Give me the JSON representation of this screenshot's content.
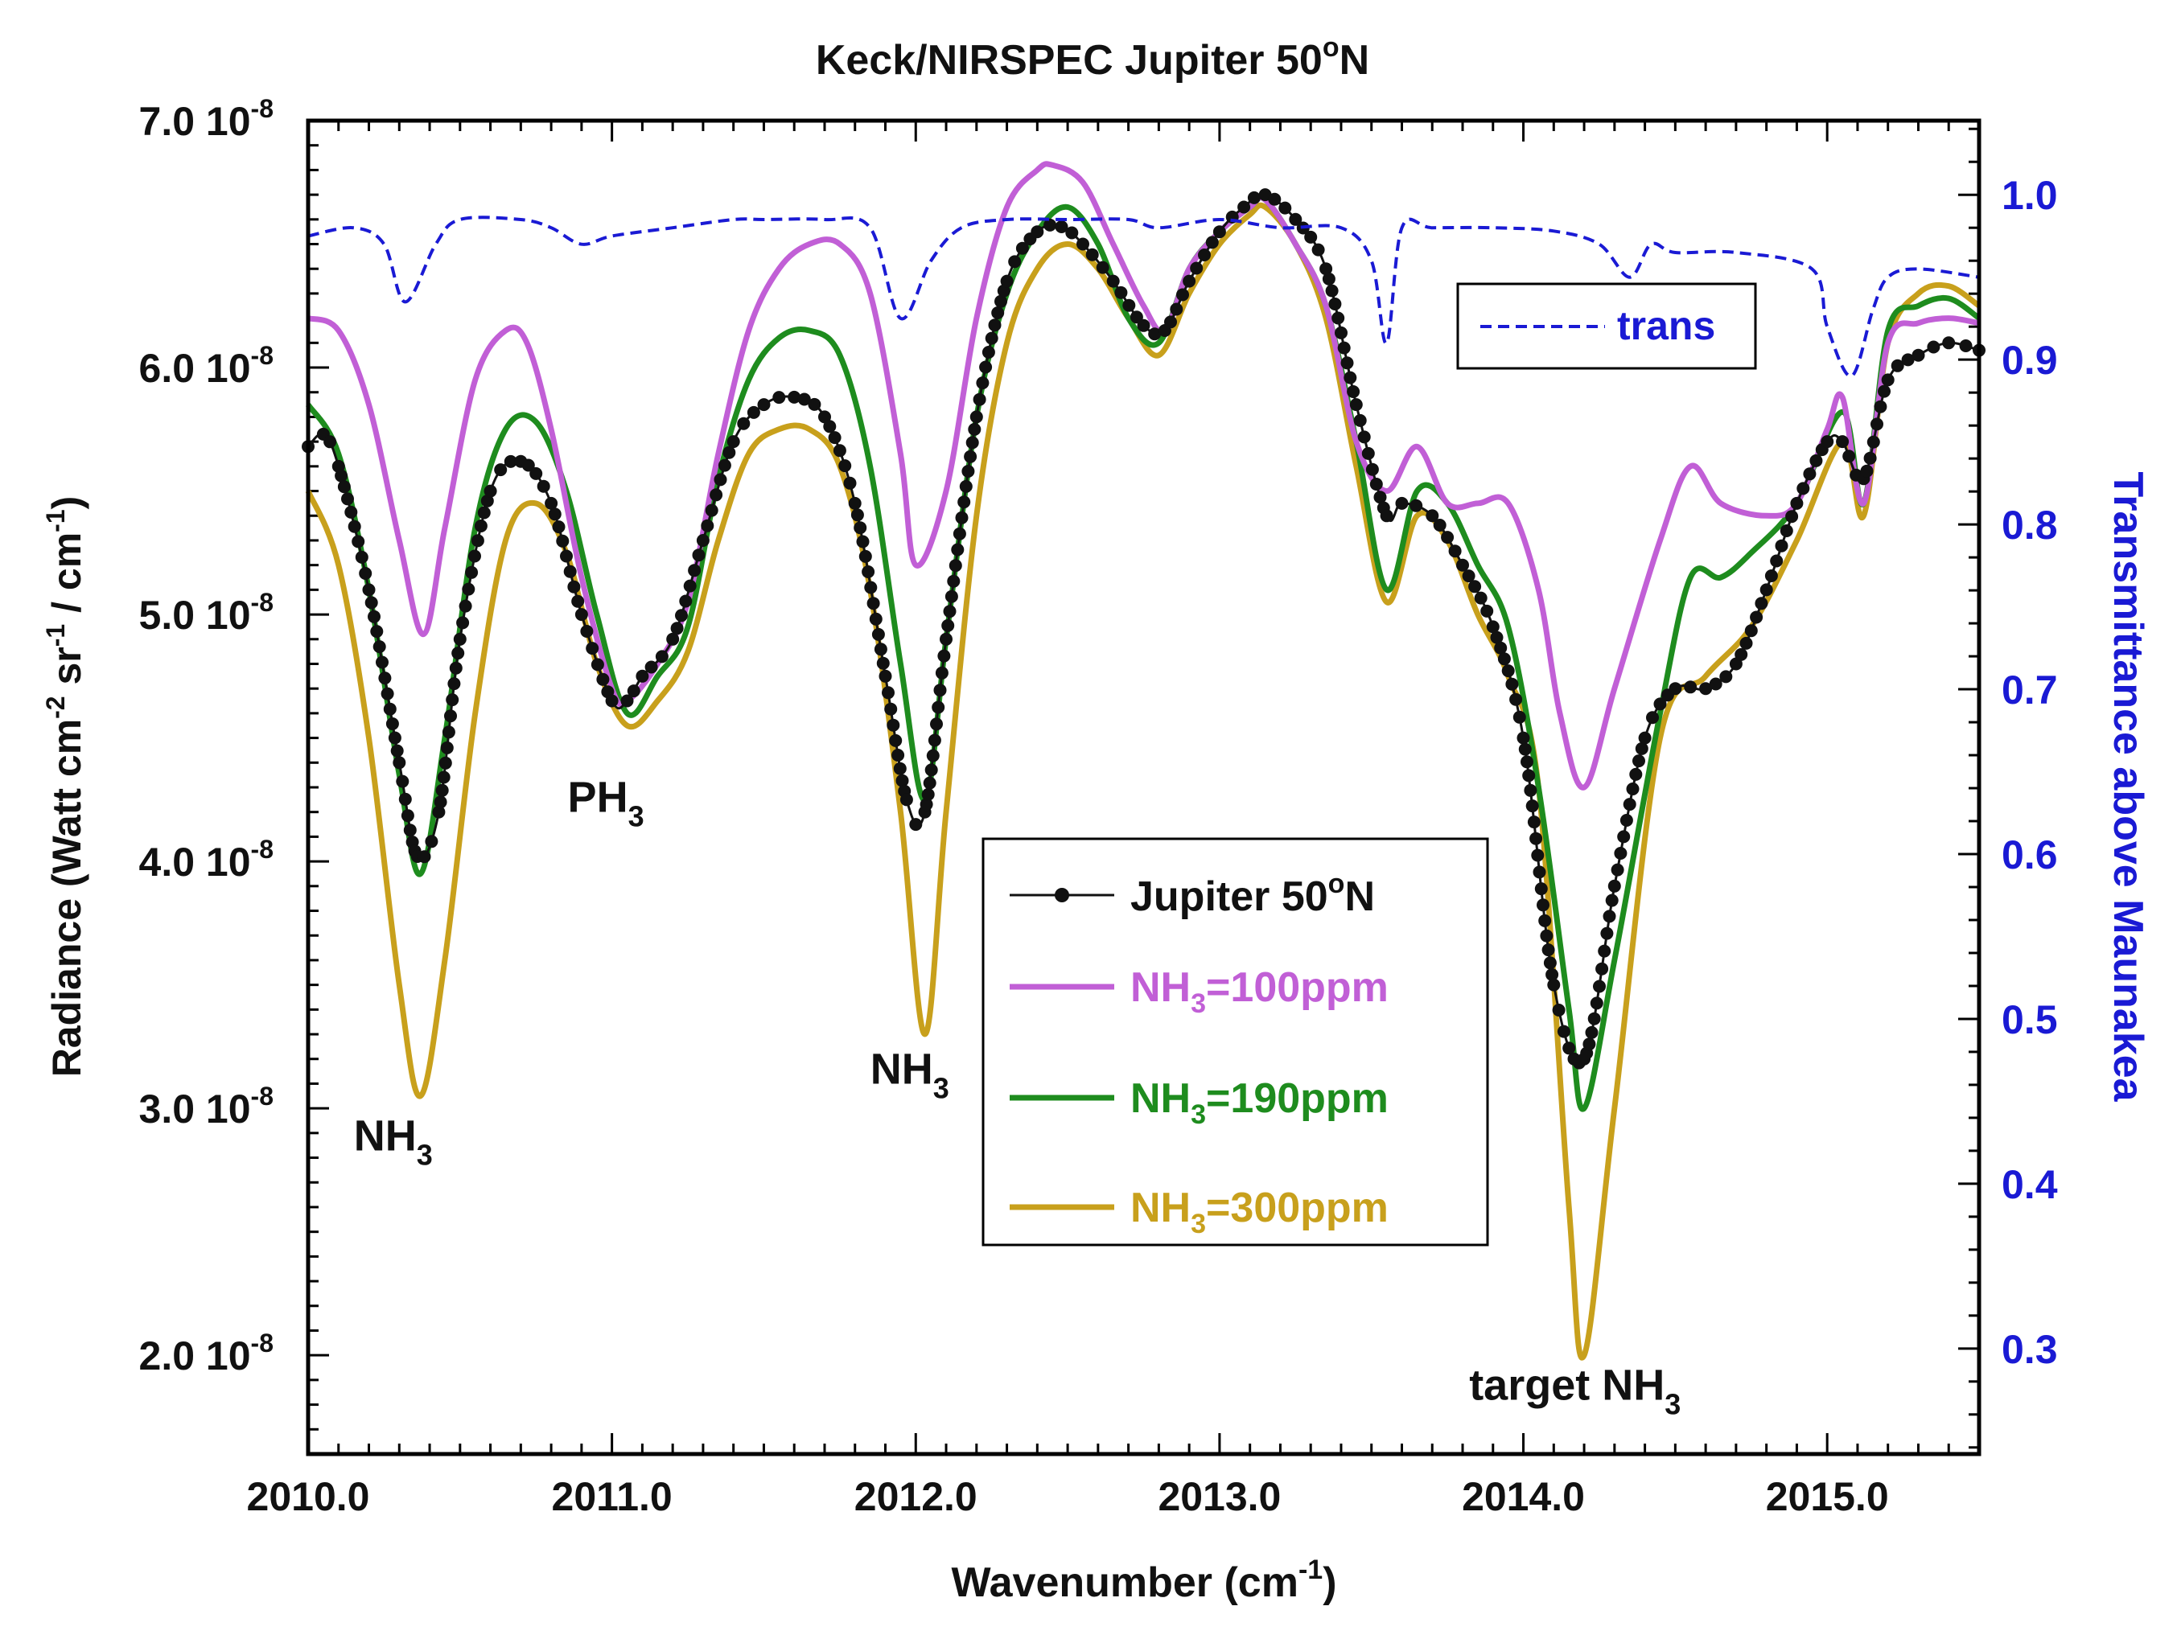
{
  "chart_data": {
    "type": "line",
    "title": {
      "pre": "Keck/NIRSPEC Jupiter 50",
      "sup": "o",
      "post": "N"
    },
    "xlabel": {
      "pre": "Wavenumber (cm",
      "sup": "-1",
      "post": ")"
    },
    "ylabel_left": {
      "a": "Radiance (Watt cm",
      "sa": "-2",
      "b": " sr",
      "sb": "-1",
      "c": " / cm",
      "sc": "-1",
      "d": ")"
    },
    "ylabel_right": "Transmittance above Maunakea",
    "xlim": [
      2010.0,
      2015.5
    ],
    "ylim_left": [
      1.6e-08,
      7e-08
    ],
    "ylim_right": [
      0.236,
      1.045
    ],
    "x_ticks": [
      {
        "value": 2010.0,
        "label": "2010.0"
      },
      {
        "value": 2011.0,
        "label": "2011.0"
      },
      {
        "value": 2012.0,
        "label": "2012.0"
      },
      {
        "value": 2013.0,
        "label": "2013.0"
      },
      {
        "value": 2014.0,
        "label": "2014.0"
      },
      {
        "value": 2015.0,
        "label": "2015.0"
      }
    ],
    "y_left_ticks": [
      {
        "value": 2e-08,
        "mant": "2.0 10",
        "exp": "-8"
      },
      {
        "value": 3e-08,
        "mant": "3.0 10",
        "exp": "-8"
      },
      {
        "value": 4e-08,
        "mant": "4.0 10",
        "exp": "-8"
      },
      {
        "value": 5e-08,
        "mant": "5.0 10",
        "exp": "-8"
      },
      {
        "value": 6e-08,
        "mant": "6.0 10",
        "exp": "-8"
      },
      {
        "value": 7e-08,
        "mant": "7.0 10",
        "exp": "-8"
      }
    ],
    "y_right_ticks": [
      {
        "value": 0.3,
        "label": "0.3"
      },
      {
        "value": 0.4,
        "label": "0.4"
      },
      {
        "value": 0.5,
        "label": "0.5"
      },
      {
        "value": 0.6,
        "label": "0.6"
      },
      {
        "value": 0.7,
        "label": "0.7"
      },
      {
        "value": 0.8,
        "label": "0.8"
      },
      {
        "value": 0.9,
        "label": "0.9"
      },
      {
        "value": 1.0,
        "label": "1.0"
      }
    ],
    "series": [
      {
        "name": "NH3=300ppm",
        "legend": {
          "a": "NH",
          "sub": "3",
          "b": "=300ppm"
        },
        "color": "#c8a01c",
        "axis": "left",
        "style": "solid",
        "x": [
          2010.0,
          2010.1,
          2010.2,
          2010.3,
          2010.37,
          2010.45,
          2010.55,
          2010.65,
          2010.75,
          2010.85,
          2010.95,
          2011.05,
          2011.15,
          2011.25,
          2011.35,
          2011.45,
          2011.55,
          2011.65,
          2011.75,
          2011.85,
          2011.95,
          2012.03,
          2012.1,
          2012.2,
          2012.3,
          2012.4,
          2012.5,
          2012.6,
          2012.7,
          2012.8,
          2012.9,
          2013.0,
          2013.1,
          2013.15,
          2013.25,
          2013.35,
          2013.45,
          2013.55,
          2013.65,
          2013.75,
          2013.85,
          2013.95,
          2014.05,
          2014.15,
          2014.2,
          2014.3,
          2014.45,
          2014.6,
          2014.75,
          2014.9,
          2015.05,
          2015.12,
          2015.2,
          2015.3,
          2015.4,
          2015.5
        ],
        "values": [
          5.5e-08,
          5.2e-08,
          4.5e-08,
          3.5e-08,
          3.05e-08,
          3.6e-08,
          4.6e-08,
          5.3e-08,
          5.45e-08,
          5.25e-08,
          4.8e-08,
          4.55e-08,
          4.65e-08,
          4.85e-08,
          5.3e-08,
          5.65e-08,
          5.75e-08,
          5.75e-08,
          5.6e-08,
          5.1e-08,
          4.2e-08,
          3.3e-08,
          4.2e-08,
          5.4e-08,
          6.1e-08,
          6.4e-08,
          6.5e-08,
          6.4e-08,
          6.2e-08,
          6.05e-08,
          6.3e-08,
          6.5e-08,
          6.62e-08,
          6.65e-08,
          6.5e-08,
          6.2e-08,
          5.6e-08,
          5.05e-08,
          5.4e-08,
          5.3e-08,
          5e-08,
          4.75e-08,
          4.3e-08,
          2.6e-08,
          2e-08,
          3e-08,
          4.5e-08,
          4.75e-08,
          4.95e-08,
          5.3e-08,
          5.7e-08,
          5.4e-08,
          6.1e-08,
          6.3e-08,
          6.33e-08,
          6.25e-08
        ]
      },
      {
        "name": "NH3=190ppm",
        "legend": {
          "a": "NH",
          "sub": "3",
          "b": "=190ppm"
        },
        "color": "#1e8c1e",
        "axis": "left",
        "style": "solid",
        "x": [
          2010.0,
          2010.1,
          2010.2,
          2010.3,
          2010.37,
          2010.45,
          2010.55,
          2010.65,
          2010.75,
          2010.85,
          2010.95,
          2011.05,
          2011.15,
          2011.25,
          2011.35,
          2011.45,
          2011.55,
          2011.65,
          2011.75,
          2011.85,
          2011.95,
          2012.03,
          2012.1,
          2012.2,
          2012.3,
          2012.4,
          2012.5,
          2012.6,
          2012.7,
          2012.8,
          2012.9,
          2013.0,
          2013.1,
          2013.15,
          2013.25,
          2013.35,
          2013.45,
          2013.55,
          2013.65,
          2013.75,
          2013.85,
          2013.95,
          2014.05,
          2014.15,
          2014.2,
          2014.3,
          2014.45,
          2014.55,
          2014.65,
          2014.75,
          2014.9,
          2015.05,
          2015.12,
          2015.2,
          2015.3,
          2015.4,
          2015.5
        ],
        "values": [
          5.85e-08,
          5.65e-08,
          5.1e-08,
          4.35e-08,
          3.95e-08,
          4.5e-08,
          5.35e-08,
          5.75e-08,
          5.78e-08,
          5.5e-08,
          5e-08,
          4.6e-08,
          4.75e-08,
          4.95e-08,
          5.55e-08,
          5.95e-08,
          6.12e-08,
          6.15e-08,
          6.05e-08,
          5.6e-08,
          4.8e-08,
          4.25e-08,
          4.9e-08,
          5.8e-08,
          6.3e-08,
          6.55e-08,
          6.65e-08,
          6.5e-08,
          6.2e-08,
          6.1e-08,
          6.4e-08,
          6.55e-08,
          6.65e-08,
          6.68e-08,
          6.5e-08,
          6.25e-08,
          5.7e-08,
          5.1e-08,
          5.5e-08,
          5.45e-08,
          5.2e-08,
          4.95e-08,
          4.3e-08,
          3.4e-08,
          3e-08,
          3.6e-08,
          4.6e-08,
          5.15e-08,
          5.15e-08,
          5.25e-08,
          5.45e-08,
          5.82e-08,
          5.45e-08,
          6.15e-08,
          6.25e-08,
          6.28e-08,
          6.2e-08
        ]
      },
      {
        "name": "NH3=100ppm",
        "legend": {
          "a": "NH",
          "sub": "3",
          "b": "=100ppm"
        },
        "color": "#c15fd6",
        "axis": "left",
        "style": "solid",
        "x": [
          2010.0,
          2010.1,
          2010.2,
          2010.3,
          2010.38,
          2010.45,
          2010.55,
          2010.65,
          2010.72,
          2010.8,
          2010.9,
          2011.0,
          2011.05,
          2011.15,
          2011.25,
          2011.35,
          2011.45,
          2011.55,
          2011.65,
          2011.75,
          2011.85,
          2011.95,
          2012.0,
          2012.1,
          2012.2,
          2012.3,
          2012.4,
          2012.45,
          2012.55,
          2012.65,
          2012.75,
          2012.82,
          2012.9,
          2013.0,
          2013.1,
          2013.15,
          2013.25,
          2013.35,
          2013.45,
          2013.55,
          2013.65,
          2013.75,
          2013.85,
          2013.95,
          2014.05,
          2014.12,
          2014.2,
          2014.3,
          2014.45,
          2014.55,
          2014.65,
          2014.8,
          2014.9,
          2015.0,
          2015.05,
          2015.12,
          2015.2,
          2015.3,
          2015.4,
          2015.5
        ],
        "values": [
          6.2e-08,
          6.15e-08,
          5.85e-08,
          5.3e-08,
          4.92e-08,
          5.35e-08,
          5.95e-08,
          6.15e-08,
          6.1e-08,
          5.75e-08,
          5.15e-08,
          4.7e-08,
          4.65e-08,
          4.8e-08,
          5.05e-08,
          5.65e-08,
          6.15e-08,
          6.4e-08,
          6.5e-08,
          6.5e-08,
          6.3e-08,
          5.65e-08,
          5.2e-08,
          5.5e-08,
          6.2e-08,
          6.65e-08,
          6.8e-08,
          6.82e-08,
          6.75e-08,
          6.5e-08,
          6.25e-08,
          6.15e-08,
          6.4e-08,
          6.55e-08,
          6.65e-08,
          6.68e-08,
          6.5e-08,
          6.25e-08,
          5.7e-08,
          5.5e-08,
          5.68e-08,
          5.45e-08,
          5.45e-08,
          5.45e-08,
          5.1e-08,
          4.6e-08,
          4.3e-08,
          4.7e-08,
          5.3e-08,
          5.6e-08,
          5.45e-08,
          5.4e-08,
          5.45e-08,
          5.75e-08,
          5.88e-08,
          5.45e-08,
          6.1e-08,
          6.18e-08,
          6.2e-08,
          6.18e-08
        ]
      },
      {
        "name": "Jupiter 50oN",
        "legend": {
          "a": "Jupiter 50",
          "sup": "o",
          "b": "N"
        },
        "color": "#111111",
        "axis": "left",
        "style": "dots",
        "x": [
          2010.0,
          2010.05,
          2010.1,
          2010.2,
          2010.3,
          2010.36,
          2010.43,
          2010.5,
          2010.6,
          2010.7,
          2010.8,
          2010.9,
          2011.0,
          2011.05,
          2011.1,
          2011.2,
          2011.3,
          2011.4,
          2011.5,
          2011.6,
          2011.7,
          2011.8,
          2011.9,
          2011.97,
          2012.03,
          2012.1,
          2012.2,
          2012.3,
          2012.4,
          2012.48,
          2012.55,
          2012.65,
          2012.75,
          2012.82,
          2012.9,
          2013.0,
          2013.08,
          2013.15,
          2013.25,
          2013.35,
          2013.45,
          2013.55,
          2013.6,
          2013.7,
          2013.8,
          2013.9,
          2014.0,
          2014.1,
          2014.2,
          2014.3,
          2014.4,
          2014.5,
          2014.6,
          2014.7,
          2014.8,
          2014.9,
          2015.0,
          2015.05,
          2015.12,
          2015.2,
          2015.3,
          2015.4,
          2015.5
        ],
        "values": [
          5.68e-08,
          5.73e-08,
          5.6e-08,
          5.1e-08,
          4.4e-08,
          4.02e-08,
          4.2e-08,
          4.9e-08,
          5.5e-08,
          5.62e-08,
          5.45e-08,
          5e-08,
          4.65e-08,
          4.65e-08,
          4.75e-08,
          4.9e-08,
          5.3e-08,
          5.7e-08,
          5.85e-08,
          5.88e-08,
          5.8e-08,
          5.45e-08,
          4.75e-08,
          4.25e-08,
          4.2e-08,
          4.9e-08,
          5.8e-08,
          6.35e-08,
          6.55e-08,
          6.57e-08,
          6.5e-08,
          6.35e-08,
          6.17e-08,
          6.15e-08,
          6.35e-08,
          6.55e-08,
          6.65e-08,
          6.7e-08,
          6.6e-08,
          6.4e-08,
          5.85e-08,
          5.4e-08,
          5.45e-08,
          5.4e-08,
          5.2e-08,
          4.95e-08,
          4.5e-08,
          3.5e-08,
          3.2e-08,
          3.9e-08,
          4.5e-08,
          4.7e-08,
          4.7e-08,
          4.8e-08,
          5.1e-08,
          5.45e-08,
          5.7e-08,
          5.7e-08,
          5.55e-08,
          5.95e-08,
          6.05e-08,
          6.1e-08,
          6.07e-08
        ]
      },
      {
        "name": "trans",
        "legend": {
          "a": "trans"
        },
        "color": "#1a1ad4",
        "axis": "right",
        "style": "dashed",
        "x": [
          2010.0,
          2010.15,
          2010.25,
          2010.32,
          2010.42,
          2010.5,
          2010.7,
          2010.8,
          2010.9,
          2011.0,
          2011.2,
          2011.4,
          2011.5,
          2011.7,
          2011.85,
          2011.95,
          2012.05,
          2012.15,
          2012.3,
          2012.5,
          2012.7,
          2012.8,
          2013.0,
          2013.2,
          2013.4,
          2013.5,
          2013.55,
          2013.6,
          2013.7,
          2013.9,
          2014.1,
          2014.25,
          2014.35,
          2014.42,
          2014.5,
          2014.7,
          2014.95,
          2015.0,
          2015.08,
          2015.15,
          2015.2,
          2015.3,
          2015.5
        ],
        "values": [
          0.975,
          0.98,
          0.97,
          0.935,
          0.97,
          0.985,
          0.985,
          0.98,
          0.97,
          0.975,
          0.98,
          0.985,
          0.985,
          0.985,
          0.98,
          0.925,
          0.96,
          0.98,
          0.985,
          0.985,
          0.985,
          0.98,
          0.985,
          0.98,
          0.98,
          0.96,
          0.91,
          0.98,
          0.98,
          0.98,
          0.978,
          0.97,
          0.95,
          0.97,
          0.965,
          0.965,
          0.955,
          0.92,
          0.89,
          0.93,
          0.95,
          0.955,
          0.95
        ]
      }
    ],
    "annotations": [
      {
        "id": "nh3-1",
        "a": "NH",
        "sub": "3",
        "x": 2010.28,
        "y": 2.83e-08
      },
      {
        "id": "ph3",
        "a": "PH",
        "sub": "3",
        "x": 2010.98,
        "y": 4.2e-08
      },
      {
        "id": "nh3-2",
        "a": "NH",
        "sub": "3",
        "x": 2011.98,
        "y": 3.1e-08
      },
      {
        "id": "nh3-target",
        "a": "target NH",
        "sub": "3",
        "x": 2014.17,
        "y": 1.82e-08
      }
    ]
  }
}
